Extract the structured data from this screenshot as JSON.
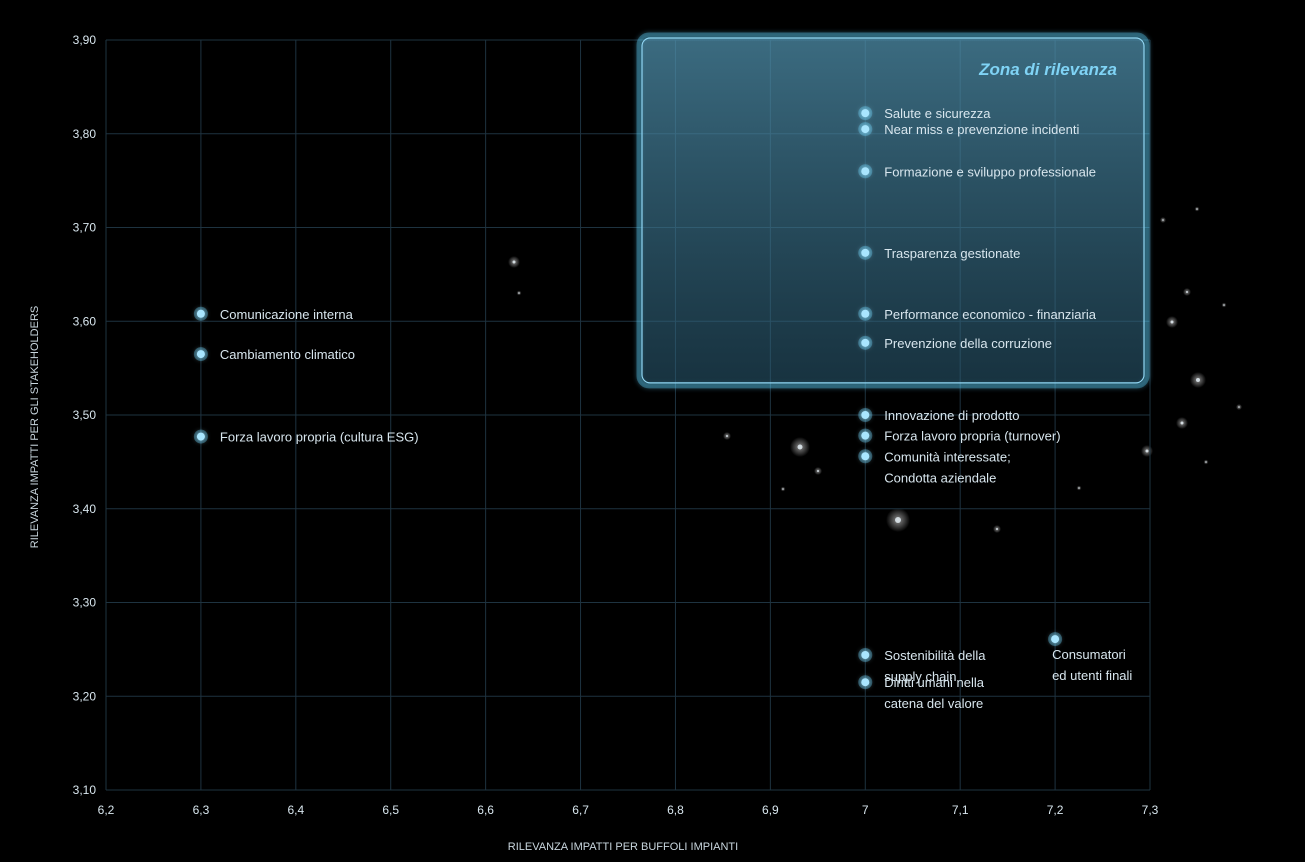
{
  "chart_data": {
    "type": "scatter",
    "title": "",
    "xlabel": "RILEVANZA IMPATTI PER BUFFOLI IMPIANTI",
    "ylabel": "RILEVANZA IMPATTI PER GLI STAKEHOLDERS",
    "xlim": [
      6.2,
      7.3
    ],
    "ylim": [
      3.1,
      3.9
    ],
    "x_ticks": [
      "6,2",
      "6,3",
      "6,4",
      "6,5",
      "6,6",
      "6,7",
      "6,8",
      "6,9",
      "7",
      "7,1",
      "7,2",
      "7,3"
    ],
    "y_ticks": [
      "3,90",
      "3,80",
      "3,70",
      "3,60",
      "3,50",
      "3,40",
      "3,30",
      "3,20",
      "3,10"
    ],
    "grid": true,
    "threshold": {
      "x": 6.75,
      "y": 3.53
    },
    "zone_label": "Zona di rilevanza",
    "colors": {
      "background": "#000000",
      "grid": "#1e3340",
      "accent": "#5cc8f0",
      "point": "#a9e6ff",
      "text": "#d8e6ee",
      "zone_label": "#7fd3f5"
    },
    "points": [
      {
        "x": 6.3,
        "y": 3.608,
        "label": [
          "Comunicazione interna"
        ]
      },
      {
        "x": 6.3,
        "y": 3.565,
        "label": [
          "Cambiamento climatico"
        ]
      },
      {
        "x": 6.3,
        "y": 3.477,
        "label": [
          "Forza lavoro propria (cultura ESG)"
        ]
      },
      {
        "x": 7.0,
        "y": 3.822,
        "label": [
          "Salute e sicurezza"
        ]
      },
      {
        "x": 7.0,
        "y": 3.805,
        "label": [
          "Near miss e prevenzione incidenti"
        ]
      },
      {
        "x": 7.0,
        "y": 3.76,
        "label": [
          "Formazione e sviluppo professionale"
        ]
      },
      {
        "x": 7.0,
        "y": 3.673,
        "label": [
          "Trasparenza gestionate"
        ]
      },
      {
        "x": 7.0,
        "y": 3.608,
        "label": [
          "Performance economico - finanziaria"
        ]
      },
      {
        "x": 7.0,
        "y": 3.577,
        "label": [
          "Prevenzione della corruzione"
        ]
      },
      {
        "x": 7.0,
        "y": 3.5,
        "label": [
          "Innovazione di prodotto"
        ]
      },
      {
        "x": 7.0,
        "y": 3.478,
        "label": [
          "Forza lavoro propria (turnover)"
        ]
      },
      {
        "x": 7.0,
        "y": 3.456,
        "label": [
          "Comunità interessate;",
          "Condotta aziendale"
        ]
      },
      {
        "x": 7.0,
        "y": 3.244,
        "label": [
          "Sostenibilità della",
          "supply chain"
        ]
      },
      {
        "x": 7.0,
        "y": 3.215,
        "label": [
          "Diritti umani nella",
          "catena del valore"
        ]
      },
      {
        "x": 7.2,
        "y": 3.261,
        "label": [
          "Consumatori",
          "ed utenti finali"
        ]
      }
    ]
  }
}
